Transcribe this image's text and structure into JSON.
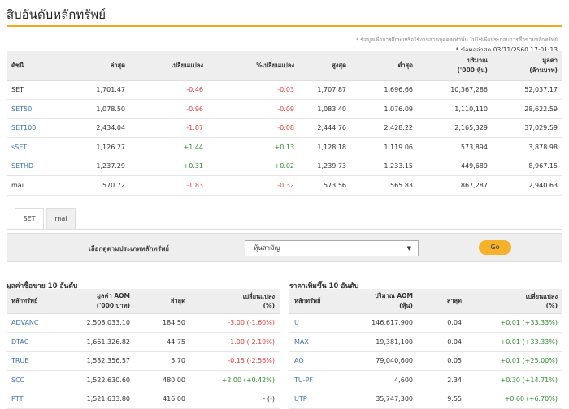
{
  "page": {
    "title": "สิบอันดับหลักทรัพย์"
  },
  "notes": {
    "disclaimer": "* ข้อมูลเพื่อการศึกษาหรือใช้งานส่วนบุคคลเท่านั้น ไม่ใช่เพื่อประกอบการซื้อขายหลักทรัพย์",
    "data_as_of": "* ข้อมูลล่าสุด 03/11/2560 17:01:13"
  },
  "index_table": {
    "headers": [
      "ดัชนี",
      "ล่าสุด",
      "เปลี่ยนแปลง",
      "%เปลี่ยนแปลง",
      "สูงสุด",
      "ต่ำสุด",
      "ปริมาณ\n('000 หุ้น)",
      "มูลค่า\n(ล้านบาท)"
    ],
    "rows": [
      {
        "name": "SET",
        "last": "1,701.47",
        "change": "-0.46",
        "pct": "-0.03",
        "high": "1,707.87",
        "low": "1,696.66",
        "volume": "10,367,286",
        "value": "52,037.17"
      },
      {
        "name": "SET50",
        "last": "1,078.50",
        "change": "-0.96",
        "pct": "-0.09",
        "high": "1,083.40",
        "low": "1,076.09",
        "volume": "1,110,110",
        "value": "28,622.59"
      },
      {
        "name": "SET100",
        "last": "2,434.04",
        "change": "-1.87",
        "pct": "-0.08",
        "high": "2,444.76",
        "low": "2,428.22",
        "volume": "2,165,329",
        "value": "37,029.59"
      },
      {
        "name": "sSET",
        "last": "1,126.27",
        "change": "+1.44",
        "pct": "+0.13",
        "high": "1,128.18",
        "low": "1,119.06",
        "volume": "573,894",
        "value": "3,878.98"
      },
      {
        "name": "SETHD",
        "last": "1,237.29",
        "change": "+0.31",
        "pct": "+0.02",
        "high": "1,239.73",
        "low": "1,233.15",
        "volume": "449,689",
        "value": "8,967.15"
      },
      {
        "name": "mai",
        "last": "570.72",
        "change": "-1.83",
        "pct": "-0.32",
        "high": "573.56",
        "low": "565.83",
        "volume": "867,287",
        "value": "2,940.63"
      }
    ]
  },
  "tabs": [
    "SET",
    "mai"
  ],
  "filter": {
    "label": "เลือกดูตามประเภทหลักทรัพย์",
    "selected": "หุ้นสามัญ",
    "go_label": "Go"
  },
  "left_table": {
    "title": "มูลค่าซื้อขาย 10 อันดับ",
    "headers": [
      "หลักทรัพย์",
      "มูลค่า AOM\n('000 บาท)",
      "ล่าสุด",
      "เปลี่ยนแปลง\n(%)"
    ],
    "rows": [
      {
        "symbol": "ADVANC",
        "value": "2,508,033.10",
        "last": "184.50",
        "change": "-3.00 (-1.60%)"
      },
      {
        "symbol": "DTAC",
        "value": "1,661,326.82",
        "last": "44.75",
        "change": "-1.00 (-2.19%)"
      },
      {
        "symbol": "TRUE",
        "value": "1,532,356.57",
        "last": "5.70",
        "change": "-0.15 (-2.56%)"
      },
      {
        "symbol": "SCC",
        "value": "1,522,630.60",
        "last": "480.00",
        "change": "+2.00 (+0.42%)"
      },
      {
        "symbol": "PTT",
        "value": "1,521,633.80",
        "last": "416.00",
        "change": "- (-)"
      }
    ]
  },
  "right_table": {
    "title": "ราคาเพิ่มขึ้น 10 อันดับ",
    "headers": [
      "หลักทรัพย์",
      "ปริมาณ AOM\n(หุ้น)",
      "ล่าสุด",
      "เปลี่ยนแปลง\n(%)"
    ],
    "rows": [
      {
        "symbol": "U",
        "volume": "146,617,900",
        "last": "0.04",
        "change": "+0.01 (+33.33%)"
      },
      {
        "symbol": "MAX",
        "volume": "19,381,100",
        "last": "0.04",
        "change": "+0.01 (+33.33%)"
      },
      {
        "symbol": "AQ",
        "volume": "79,040,600",
        "last": "0.05",
        "change": "+0.01 (+25.00%)"
      },
      {
        "symbol": "TU-PF",
        "volume": "4,600",
        "last": "2.34",
        "change": "+0.30 (+14.71%)"
      },
      {
        "symbol": "UTP",
        "volume": "35,747,300",
        "last": "9.55",
        "change": "+0.60 (+6.70%)"
      }
    ]
  },
  "colors": {
    "accent": "#f5a623",
    "negative": "#e53935",
    "positive": "#2e8b2e",
    "link": "#3a6fb8",
    "header_bg": "#eeeeee"
  }
}
